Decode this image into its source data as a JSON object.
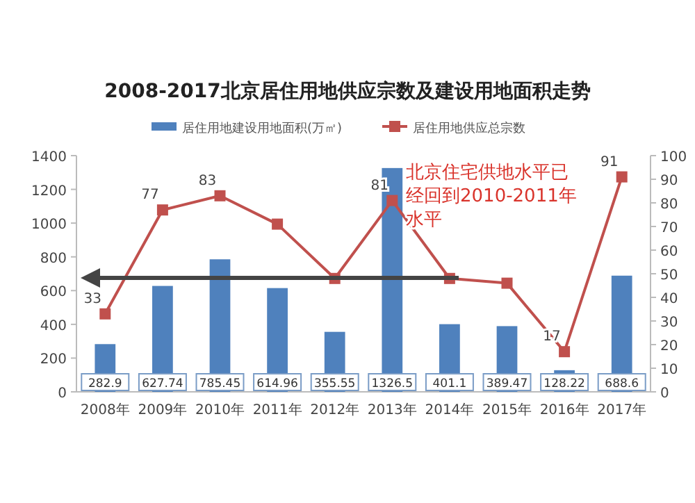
{
  "chart_data": {
    "type": "bar",
    "title": "2008-2017北京居住用地供应宗数及建设用地面积走势",
    "categories": [
      "2008年",
      "2009年",
      "2010年",
      "2011年",
      "2012年",
      "2013年",
      "2014年",
      "2015年",
      "2016年",
      "2017年"
    ],
    "series": [
      {
        "name": "居住用地建设用地面积(万㎡)",
        "color": "#4f81bd",
        "values": [
          282.9,
          627.74,
          785.45,
          614.96,
          355.55,
          1326.5,
          401.1,
          389.47,
          128.22,
          688.6
        ],
        "value_labels": [
          "282.9",
          "627.74",
          "785.45",
          "614.96",
          "355.55",
          "1326.5",
          "401.1",
          "389.47",
          "128.22",
          "688.6"
        ]
      },
      {
        "name": "居住用地供应总宗数",
        "type": "line",
        "axis": "y2",
        "color": "#c0504d",
        "marker": "square",
        "values": [
          33,
          77,
          83,
          71,
          48,
          81,
          48,
          46,
          17,
          91
        ],
        "value_labels": [
          "33",
          "77",
          "83",
          null,
          null,
          "81",
          null,
          null,
          "17",
          "91"
        ]
      }
    ],
    "ylim": [
      0,
      1400
    ],
    "yticks": [
      0,
      200,
      400,
      600,
      800,
      1000,
      1200,
      1400
    ],
    "y2lim": [
      0,
      100
    ],
    "y2ticks": [
      0,
      10,
      20,
      30,
      40,
      50,
      60,
      70,
      80,
      90,
      100
    ],
    "legend": "top",
    "annotations": [
      "北京住宅供地水平已",
      "经回到2010-2011年",
      "水平"
    ]
  }
}
